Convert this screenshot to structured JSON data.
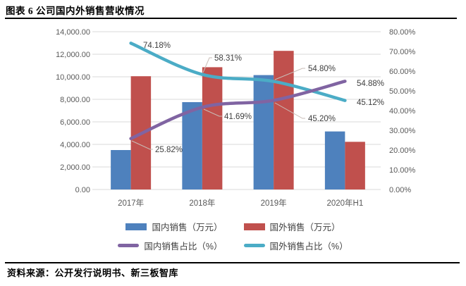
{
  "header": {
    "title": "图表 6 公司国内外销售营收情况"
  },
  "footer": {
    "source": "资料来源：公开发行说明书、新三板智库"
  },
  "chart_data": {
    "type": "combo-bar-line",
    "categories": [
      "2017年",
      "2018年",
      "2019年",
      "2020年H1"
    ],
    "bar_series": [
      {
        "name": "国内销售（万元）",
        "color": "#4E81BD",
        "axis": "left",
        "values": [
          3500,
          7750,
          10150,
          5150
        ]
      },
      {
        "name": "国外销售（万元）",
        "color": "#C0504D",
        "axis": "left",
        "values": [
          10050,
          10850,
          12300,
          4230
        ]
      }
    ],
    "line_series": [
      {
        "name": "国内销售占比（%）",
        "color": "#8064A2",
        "axis": "right",
        "values": [
          25.82,
          41.69,
          45.2,
          54.88
        ],
        "labels": [
          "25.82%",
          "41.69%",
          "45.20%",
          "54.88%"
        ]
      },
      {
        "name": "国外销售占比（%）",
        "color": "#4BACC6",
        "axis": "right",
        "values": [
          74.18,
          58.31,
          54.8,
          45.12
        ],
        "labels": [
          "74.18%",
          "58.31%",
          "54.80%",
          "45.12%"
        ]
      }
    ],
    "left_axis": {
      "min": 0,
      "max": 14000,
      "tick_labels": [
        "0.00",
        "2,000.00",
        "4,000.00",
        "6,000.00",
        "8,000.00",
        "10,000.00",
        "12,000.00",
        "14,000.00"
      ]
    },
    "right_axis": {
      "min": 0,
      "max": 80,
      "tick_labels": [
        "0.00%",
        "10.00%",
        "20.00%",
        "30.00%",
        "40.00%",
        "50.00%",
        "60.00%",
        "70.00%",
        "80.00%"
      ]
    },
    "grid": true,
    "legend_position": "bottom",
    "colors": {
      "gridline": "#D9D9D9",
      "axis_text": "#595959",
      "data_label_text": "#404040",
      "leader_line": "#C9BEB8"
    }
  }
}
